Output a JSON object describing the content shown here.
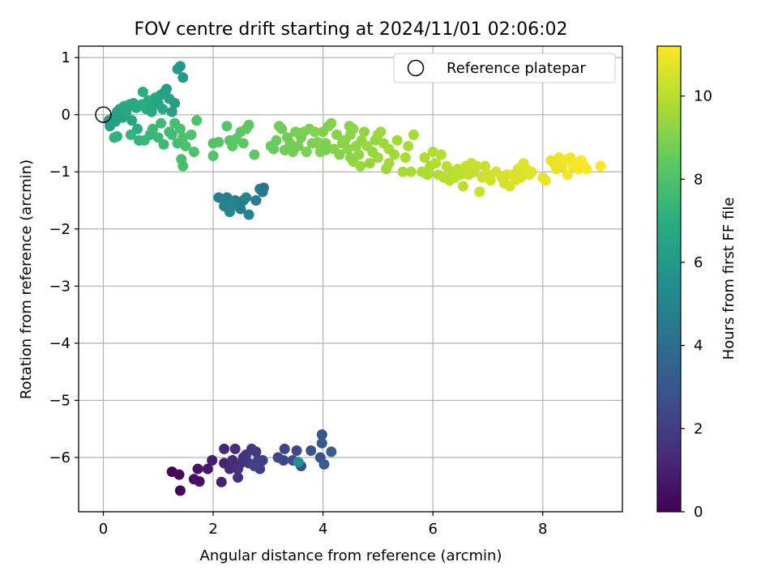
{
  "chart_data": {
    "type": "scatter",
    "title": "FOV centre drift starting at 2024/11/01 02:06:02",
    "xlabel": "Angular distance from reference (arcmin)",
    "ylabel": "Rotation from reference (arcmin)",
    "xlim": [
      -0.45,
      9.45
    ],
    "ylim": [
      -6.95,
      1.2
    ],
    "xticks": [
      0,
      2,
      4,
      6,
      8
    ],
    "yticks": [
      1,
      0,
      -1,
      -2,
      -3,
      -4,
      -5,
      -6
    ],
    "grid": true,
    "legend": {
      "position": "top-right",
      "label": "Reference platepar"
    },
    "reference_point": {
      "x": 0,
      "y": 0
    },
    "colorbar": {
      "label": "Hours from first FF file",
      "min": 0,
      "max": 11.2,
      "ticks": [
        0,
        2,
        4,
        6,
        8,
        10
      ],
      "colormap": "viridis"
    },
    "points": [
      [
        1.4,
        -6.58,
        0.1
      ],
      [
        1.25,
        -6.25,
        0.2
      ],
      [
        1.38,
        -6.3,
        0.3
      ],
      [
        1.65,
        -6.38,
        0.4
      ],
      [
        1.75,
        -6.42,
        0.5
      ],
      [
        1.72,
        -6.2,
        0.6
      ],
      [
        1.9,
        -6.2,
        0.8
      ],
      [
        1.98,
        -6.05,
        0.9
      ],
      [
        2.15,
        -6.43,
        1.0
      ],
      [
        2.2,
        -6.1,
        1.1
      ],
      [
        2.2,
        -5.85,
        1.2
      ],
      [
        2.3,
        -6.2,
        1.3
      ],
      [
        2.35,
        -6.05,
        1.3
      ],
      [
        2.4,
        -5.85,
        1.4
      ],
      [
        2.45,
        -6.35,
        1.5
      ],
      [
        2.5,
        -6.1,
        1.5
      ],
      [
        2.45,
        -6.2,
        1.6
      ],
      [
        2.55,
        -6.0,
        1.6
      ],
      [
        2.6,
        -5.95,
        1.7
      ],
      [
        2.65,
        -6.1,
        1.8
      ],
      [
        2.7,
        -5.85,
        1.8
      ],
      [
        2.78,
        -5.9,
        1.9
      ],
      [
        2.82,
        -6.05,
        2.0
      ],
      [
        2.85,
        -6.2,
        2.0
      ],
      [
        2.9,
        -6.05,
        2.1
      ],
      [
        2.75,
        -6.15,
        2.2
      ],
      [
        3.18,
        -6.0,
        2.3
      ],
      [
        3.28,
        -6.05,
        2.4
      ],
      [
        3.3,
        -5.85,
        2.4
      ],
      [
        3.52,
        -5.88,
        2.5
      ],
      [
        3.45,
        -6.05,
        2.6
      ],
      [
        3.6,
        -6.15,
        2.7
      ],
      [
        3.78,
        -5.88,
        2.8
      ],
      [
        3.95,
        -6.0,
        2.9
      ],
      [
        3.98,
        -5.6,
        3.0
      ],
      [
        3.98,
        -5.75,
        3.1
      ],
      [
        4.02,
        -6.12,
        3.2
      ],
      [
        4.15,
        -5.9,
        3.4
      ],
      [
        2.1,
        -1.45,
        4.6
      ],
      [
        2.2,
        -1.5,
        4.7
      ],
      [
        2.25,
        -1.45,
        4.8
      ],
      [
        2.2,
        -1.6,
        4.9
      ],
      [
        2.3,
        -1.7,
        5.0
      ],
      [
        2.35,
        -1.55,
        5.1
      ],
      [
        2.4,
        -1.5,
        5.0
      ],
      [
        2.45,
        -1.6,
        4.9
      ],
      [
        2.5,
        -1.65,
        4.8
      ],
      [
        2.55,
        -1.5,
        4.7
      ],
      [
        2.65,
        -1.75,
        4.9
      ],
      [
        2.6,
        -1.45,
        5.0
      ],
      [
        2.78,
        -1.5,
        4.6
      ],
      [
        2.85,
        -1.3,
        4.5
      ],
      [
        2.9,
        -1.35,
        4.4
      ],
      [
        2.92,
        -1.28,
        4.3
      ],
      [
        3.55,
        -6.08,
        5.5
      ],
      [
        0.1,
        -0.1,
        6.2
      ],
      [
        0.12,
        -0.2,
        6.3
      ],
      [
        0.18,
        -0.05,
        6.3
      ],
      [
        0.22,
        -0.12,
        6.4
      ],
      [
        0.25,
        0.05,
        6.4
      ],
      [
        0.3,
        0.1,
        6.5
      ],
      [
        0.35,
        -0.05,
        6.5
      ],
      [
        0.38,
        0.15,
        6.6
      ],
      [
        0.42,
        0.05,
        6.6
      ],
      [
        0.48,
        0.18,
        6.7
      ],
      [
        0.52,
        -0.1,
        6.7
      ],
      [
        0.55,
        0.2,
        6.8
      ],
      [
        0.6,
        0.12,
        6.8
      ],
      [
        0.62,
        -0.25,
        6.9
      ],
      [
        0.7,
        0.18,
        6.9
      ],
      [
        0.72,
        0.4,
        7.0
      ],
      [
        0.78,
        0.1,
        7.0
      ],
      [
        0.82,
        0.25,
        6.9
      ],
      [
        0.88,
        0.05,
        6.8
      ],
      [
        0.9,
        0.15,
        6.7
      ],
      [
        0.95,
        0.3,
        6.6
      ],
      [
        1.0,
        0.2,
        6.5
      ],
      [
        1.05,
        0.35,
        6.5
      ],
      [
        1.08,
        0.1,
        6.6
      ],
      [
        1.12,
        0.4,
        6.4
      ],
      [
        1.15,
        0.45,
        6.3
      ],
      [
        1.2,
        0.28,
        6.4
      ],
      [
        1.25,
        0.05,
        6.3
      ],
      [
        1.3,
        0.2,
        6.2
      ],
      [
        1.35,
        0.8,
        6.1
      ],
      [
        1.4,
        0.85,
        6.0
      ],
      [
        1.45,
        0.65,
        6.1
      ],
      [
        0.2,
        -0.4,
        7.2
      ],
      [
        0.25,
        -0.38,
        7.2
      ],
      [
        0.5,
        -0.35,
        7.3
      ],
      [
        0.65,
        -0.45,
        7.3
      ],
      [
        0.75,
        -0.45,
        7.4
      ],
      [
        0.85,
        -0.35,
        7.4
      ],
      [
        0.9,
        -0.25,
        7.5
      ],
      [
        1.0,
        -0.4,
        7.5
      ],
      [
        1.05,
        -0.15,
        7.6
      ],
      [
        1.1,
        -0.52,
        7.6
      ],
      [
        1.2,
        -0.3,
        7.7
      ],
      [
        1.25,
        -0.35,
        7.7
      ],
      [
        1.3,
        -0.15,
        7.8
      ],
      [
        1.35,
        -0.5,
        7.8
      ],
      [
        1.4,
        -0.25,
        7.9
      ],
      [
        1.45,
        -0.4,
        7.9
      ],
      [
        1.5,
        -0.55,
        7.9
      ],
      [
        1.6,
        -0.35,
        8.0
      ],
      [
        1.65,
        -0.65,
        8.0
      ],
      [
        1.7,
        -0.1,
        8.0
      ],
      [
        1.42,
        -0.78,
        7.8
      ],
      [
        1.45,
        -0.9,
        7.8
      ],
      [
        2.0,
        -0.5,
        8.1
      ],
      [
        2.0,
        -0.72,
        8.1
      ],
      [
        2.1,
        -0.48,
        8.2
      ],
      [
        2.25,
        -0.2,
        8.2
      ],
      [
        2.3,
        -0.45,
        8.2
      ],
      [
        2.35,
        -0.55,
        8.3
      ],
      [
        2.42,
        -0.42,
        8.3
      ],
      [
        2.5,
        -0.3,
        8.3
      ],
      [
        2.55,
        -0.5,
        8.3
      ],
      [
        2.6,
        -0.25,
        8.4
      ],
      [
        2.65,
        -0.18,
        8.4
      ],
      [
        2.75,
        -0.7,
        8.4
      ],
      [
        3.05,
        -0.55,
        8.6
      ],
      [
        3.1,
        -0.6,
        8.6
      ],
      [
        3.15,
        -0.45,
        8.6
      ],
      [
        3.2,
        -0.2,
        8.7
      ],
      [
        3.25,
        -0.25,
        8.7
      ],
      [
        3.3,
        -0.62,
        8.7
      ],
      [
        3.35,
        -0.4,
        8.7
      ],
      [
        3.4,
        -0.5,
        8.8
      ],
      [
        3.45,
        -0.65,
        8.8
      ],
      [
        3.5,
        -0.3,
        8.8
      ],
      [
        3.55,
        -0.55,
        8.8
      ],
      [
        3.6,
        -0.4,
        8.8
      ],
      [
        3.65,
        -0.3,
        8.9
      ],
      [
        3.7,
        -0.65,
        8.9
      ],
      [
        3.75,
        -0.25,
        8.9
      ],
      [
        3.8,
        -0.5,
        8.9
      ],
      [
        3.85,
        -0.3,
        9.0
      ],
      [
        3.9,
        -0.48,
        9.0
      ],
      [
        3.95,
        -0.55,
        9.0
      ],
      [
        4.0,
        -0.3,
        9.0
      ],
      [
        4.05,
        -0.5,
        9.0
      ],
      [
        4.1,
        -0.2,
        9.0
      ],
      [
        4.15,
        -0.15,
        9.1
      ],
      [
        4.2,
        -0.6,
        9.1
      ],
      [
        4.25,
        -0.35,
        9.1
      ],
      [
        4.35,
        -0.5,
        9.1
      ],
      [
        4.4,
        -0.45,
        9.2
      ],
      [
        4.45,
        -0.6,
        9.2
      ],
      [
        4.5,
        -0.35,
        9.2
      ],
      [
        4.55,
        -0.25,
        9.2
      ],
      [
        4.6,
        -0.55,
        9.3
      ],
      [
        4.65,
        -0.7,
        9.3
      ],
      [
        4.7,
        -0.45,
        9.3
      ],
      [
        4.75,
        -0.3,
        9.3
      ],
      [
        4.8,
        -0.55,
        9.4
      ],
      [
        4.85,
        -0.85,
        9.4
      ],
      [
        4.9,
        -0.65,
        9.4
      ],
      [
        4.95,
        -0.45,
        9.4
      ],
      [
        5.0,
        -0.75,
        9.5
      ],
      [
        5.05,
        -0.3,
        9.5
      ],
      [
        5.1,
        -0.5,
        9.5
      ],
      [
        5.15,
        -0.95,
        9.5
      ],
      [
        5.2,
        -0.6,
        9.6
      ],
      [
        5.3,
        -0.7,
        9.6
      ],
      [
        5.35,
        -0.45,
        9.6
      ],
      [
        5.45,
        -1.0,
        9.7
      ],
      [
        5.5,
        -0.75,
        9.7
      ],
      [
        5.55,
        -0.55,
        9.7
      ],
      [
        5.65,
        -0.35,
        9.7
      ],
      [
        5.8,
        -1.0,
        9.8
      ],
      [
        5.85,
        -0.75,
        9.8
      ],
      [
        5.9,
        -1.05,
        9.8
      ],
      [
        5.95,
        -0.9,
        9.8
      ],
      [
        6.0,
        -0.65,
        9.9
      ],
      [
        6.05,
        -0.85,
        9.9
      ],
      [
        6.1,
        -1.05,
        9.9
      ],
      [
        6.15,
        -0.7,
        9.9
      ],
      [
        6.2,
        -1.1,
        10.0
      ],
      [
        6.25,
        -0.9,
        10.0
      ],
      [
        6.3,
        -1.15,
        10.0
      ],
      [
        6.35,
        -1.0,
        10.0
      ],
      [
        6.4,
        -1.1,
        10.1
      ],
      [
        6.45,
        -0.95,
        10.1
      ],
      [
        6.5,
        -1.05,
        10.1
      ],
      [
        6.55,
        -1.25,
        10.1
      ],
      [
        6.6,
        -0.9,
        10.2
      ],
      [
        6.65,
        -1.05,
        10.2
      ],
      [
        6.7,
        -0.85,
        10.2
      ],
      [
        6.75,
        -1.0,
        10.2
      ],
      [
        6.8,
        -0.9,
        10.3
      ],
      [
        6.85,
        -1.35,
        10.3
      ],
      [
        6.9,
        -1.1,
        10.3
      ],
      [
        6.95,
        -0.9,
        10.3
      ],
      [
        7.0,
        -1.05,
        10.4
      ],
      [
        7.05,
        -1.15,
        10.4
      ],
      [
        7.15,
        -1.0,
        10.4
      ],
      [
        7.25,
        -1.1,
        10.5
      ],
      [
        7.3,
        -1.2,
        10.5
      ],
      [
        7.35,
        -1.05,
        10.5
      ],
      [
        7.4,
        -1.25,
        10.5
      ],
      [
        7.45,
        -1.05,
        10.6
      ],
      [
        7.5,
        -1.15,
        10.6
      ],
      [
        7.55,
        -0.95,
        10.6
      ],
      [
        7.6,
        -1.1,
        10.6
      ],
      [
        7.65,
        -0.85,
        10.7
      ],
      [
        7.7,
        -0.95,
        10.7
      ],
      [
        7.75,
        -1.05,
        10.7
      ],
      [
        7.8,
        -1.0,
        10.7
      ],
      [
        8.0,
        -1.1,
        10.8
      ],
      [
        8.05,
        -1.15,
        10.8
      ],
      [
        8.15,
        -0.8,
        10.8
      ],
      [
        8.2,
        -0.85,
        10.9
      ],
      [
        8.25,
        -0.95,
        10.9
      ],
      [
        8.3,
        -0.75,
        10.9
      ],
      [
        8.35,
        -0.9,
        10.9
      ],
      [
        8.4,
        -0.8,
        11.0
      ],
      [
        8.45,
        -1.05,
        11.0
      ],
      [
        8.5,
        -0.75,
        11.0
      ],
      [
        8.55,
        -0.9,
        11.0
      ],
      [
        8.6,
        -0.85,
        11.1
      ],
      [
        8.65,
        -0.95,
        11.1
      ],
      [
        8.7,
        -0.8,
        11.1
      ],
      [
        8.75,
        -0.9,
        11.1
      ],
      [
        8.8,
        -0.95,
        11.1
      ],
      [
        9.05,
        -0.9,
        11.2
      ],
      [
        4.05,
        -0.55,
        8.9
      ],
      [
        3.95,
        -0.65,
        9.0
      ],
      [
        4.05,
        -0.62,
        8.9
      ],
      [
        4.5,
        -0.75,
        9.2
      ],
      [
        4.3,
        -0.7,
        9.1
      ],
      [
        4.55,
        -0.82,
        9.3
      ],
      [
        4.48,
        -0.2,
        9.2
      ],
      [
        4.68,
        -0.9,
        9.4
      ],
      [
        5.0,
        -0.35,
        9.5
      ],
      [
        5.2,
        -0.85,
        9.6
      ],
      [
        5.6,
        -1.0,
        9.7
      ]
    ]
  }
}
